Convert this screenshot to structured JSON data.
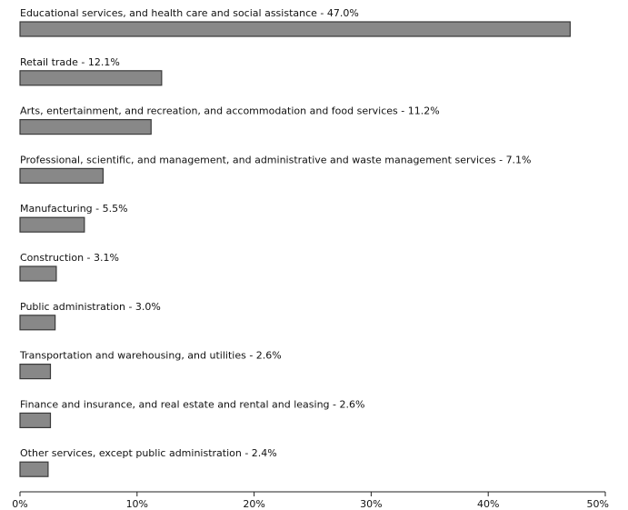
{
  "chart_data": {
    "type": "bar",
    "orientation": "horizontal",
    "categories": [
      "Educational services, and health care and social assistance",
      "Retail trade",
      "Arts, entertainment, and recreation, and accommodation and food services",
      "Professional, scientific, and management, and administrative and waste management services",
      "Manufacturing",
      "Construction",
      "Public administration",
      "Transportation and warehousing, and utilities",
      "Finance and insurance, and real estate and rental and leasing",
      "Other services, except public administration"
    ],
    "value_labels": [
      "47.0%",
      "12.1%",
      "11.2%",
      "7.1%",
      "5.5%",
      "3.1%",
      "3.0%",
      "2.6%",
      "2.6%",
      "2.4%"
    ],
    "values": [
      47.0,
      12.1,
      11.2,
      7.1,
      5.5,
      3.1,
      3.0,
      2.6,
      2.6,
      2.4
    ],
    "separator": " - ",
    "xlim": [
      0,
      50
    ],
    "x_ticks": [
      0,
      10,
      20,
      30,
      40,
      50
    ],
    "x_tick_labels": [
      "0%",
      "10%",
      "20%",
      "30%",
      "40%",
      "50%"
    ],
    "grid": false,
    "legend": "none",
    "colors": {
      "bar_fill": "#888888",
      "bar_stroke": "#3a3a3a"
    }
  }
}
